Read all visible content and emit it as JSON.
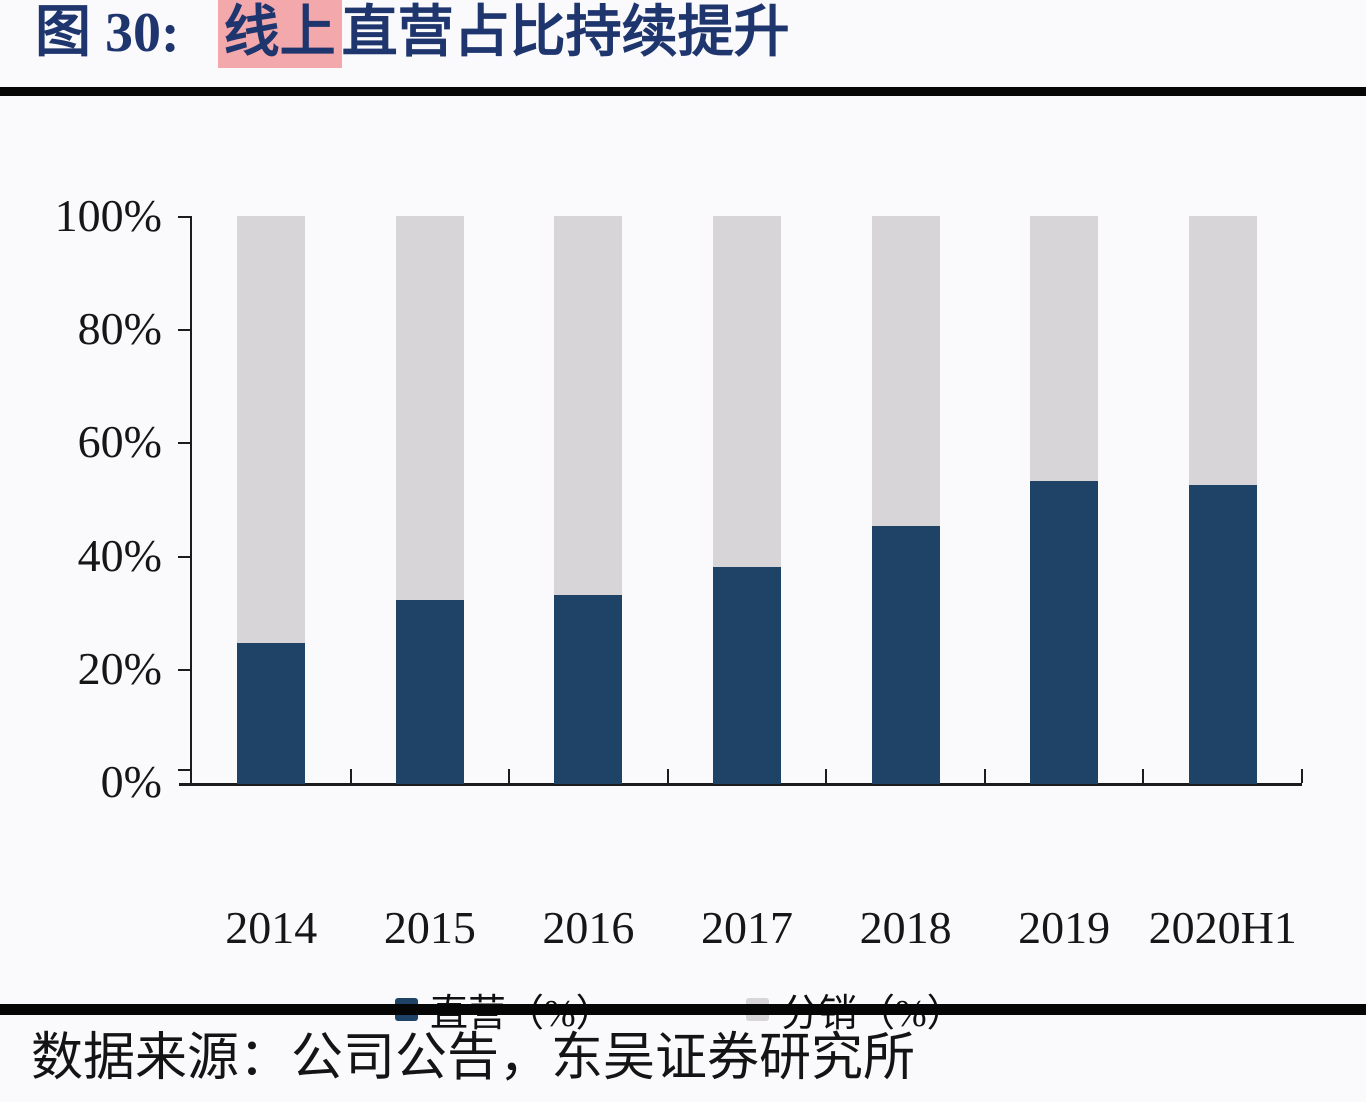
{
  "title": {
    "figure_label": "图 30:",
    "highlighted": "线上",
    "text": "直营占比持续提升"
  },
  "footer": {
    "source": "数据来源：公司公告，东吴证券研究所"
  },
  "colors": {
    "direct_bar": "#1E4366",
    "distribution_bar": "#D8D5D8",
    "title_text": "#1E356E",
    "highlight": "#F3A8AB",
    "axis": "#1C1C1C",
    "divider": "#060606",
    "background": "#FAF9FB"
  },
  "chart_data": {
    "type": "bar",
    "stacked": true,
    "title": "线上直营占比持续提升",
    "categories": [
      "2014",
      "2015",
      "2016",
      "2017",
      "2018",
      "2019",
      "2020H1"
    ],
    "series": [
      {
        "name": "直营（%）",
        "color": "#1E4366",
        "values": [
          24.5,
          32.2,
          33.1,
          38.0,
          45.2,
          53.1,
          52.4
        ]
      },
      {
        "name": "分销（%）",
        "color": "#D8D5D8",
        "values": [
          75.5,
          67.8,
          66.9,
          62.0,
          54.8,
          46.9,
          47.6
        ]
      }
    ],
    "xlabel": "",
    "ylabel": "",
    "ylim": [
      0,
      100
    ],
    "yticks": [
      "0%",
      "20%",
      "40%",
      "60%",
      "80%",
      "100%"
    ],
    "legend_position": "bottom",
    "grid": false
  }
}
